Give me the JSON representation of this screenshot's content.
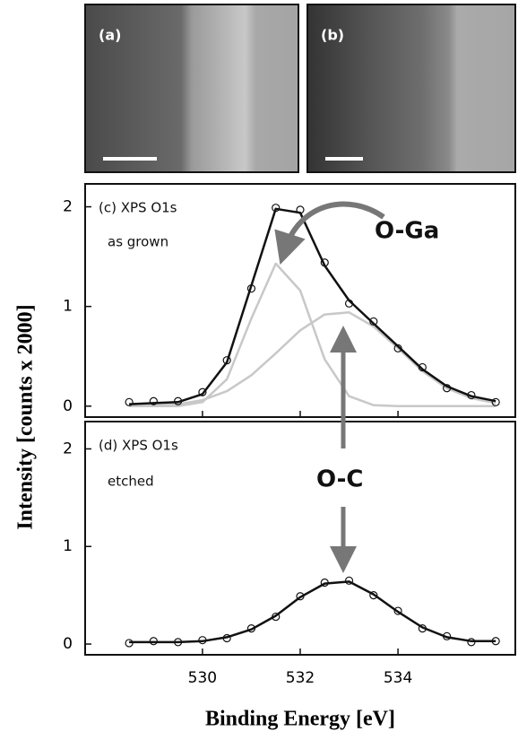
{
  "images": [
    {
      "label": "(a)"
    },
    {
      "label": "(b)"
    }
  ],
  "chart_data": [
    {
      "type": "line",
      "annotations": [
        "(c)  XPS O1s",
        "as grown",
        "O-Ga"
      ],
      "x": [
        528.5,
        529,
        529.5,
        530,
        530.5,
        531,
        531.5,
        532,
        532.5,
        533,
        533.5,
        534,
        534.5,
        535,
        535.5,
        536
      ],
      "series": [
        {
          "color": "#c8c8c8",
          "marker": "none",
          "values": [
            0,
            0,
            0,
            0.04,
            0.27,
            0.88,
            1.43,
            1.16,
            0.47,
            0.1,
            0.01,
            0,
            0,
            0,
            0,
            0
          ]
        },
        {
          "color": "#c8c8c8",
          "marker": "none",
          "values": [
            0,
            0.01,
            0.02,
            0.06,
            0.15,
            0.31,
            0.53,
            0.76,
            0.92,
            0.94,
            0.8,
            0.58,
            0.35,
            0.18,
            0.08,
            0.03
          ]
        },
        {
          "color": "#111111",
          "marker": "none",
          "values": [
            0.02,
            0.03,
            0.04,
            0.12,
            0.44,
            1.21,
            1.98,
            1.94,
            1.41,
            1.06,
            0.83,
            0.6,
            0.37,
            0.2,
            0.1,
            0.05
          ]
        },
        {
          "color": "#111111",
          "marker": "circle",
          "values": [
            0.04,
            0.05,
            0.05,
            0.14,
            0.46,
            1.18,
            1.99,
            1.97,
            1.44,
            1.03,
            0.85,
            0.58,
            0.39,
            0.18,
            0.11,
            0.04
          ]
        }
      ],
      "xlim": [
        527.6,
        536.4
      ],
      "xticks": [
        530,
        532,
        534
      ],
      "ylim": [
        -0.11,
        2.23
      ],
      "yticks": [
        0,
        1,
        2
      ]
    },
    {
      "type": "line",
      "annotations": [
        "(d)  XPS O1s",
        "etched",
        "O-C"
      ],
      "xlabel": "Binding Energy [eV]",
      "ylabel": "Intensity [counts x 2000]",
      "x": [
        528.5,
        529,
        529.5,
        530,
        530.5,
        531,
        531.5,
        532,
        532.5,
        533,
        533.5,
        534,
        534.5,
        535,
        535.5,
        536
      ],
      "series": [
        {
          "color": "#111111",
          "marker": "none",
          "values": [
            0.02,
            0.02,
            0.02,
            0.03,
            0.07,
            0.15,
            0.29,
            0.48,
            0.62,
            0.64,
            0.51,
            0.33,
            0.17,
            0.07,
            0.03,
            0.03
          ]
        },
        {
          "color": "#111111",
          "marker": "circle",
          "values": [
            0.01,
            0.03,
            0.02,
            0.04,
            0.06,
            0.16,
            0.28,
            0.49,
            0.63,
            0.65,
            0.5,
            0.34,
            0.16,
            0.08,
            0.02,
            0.03
          ]
        }
      ],
      "xlim": [
        527.6,
        536.4
      ],
      "xticks": [
        530,
        532,
        534
      ],
      "ylim": [
        -0.11,
        2.28
      ],
      "yticks": [
        0,
        1,
        2
      ]
    }
  ]
}
